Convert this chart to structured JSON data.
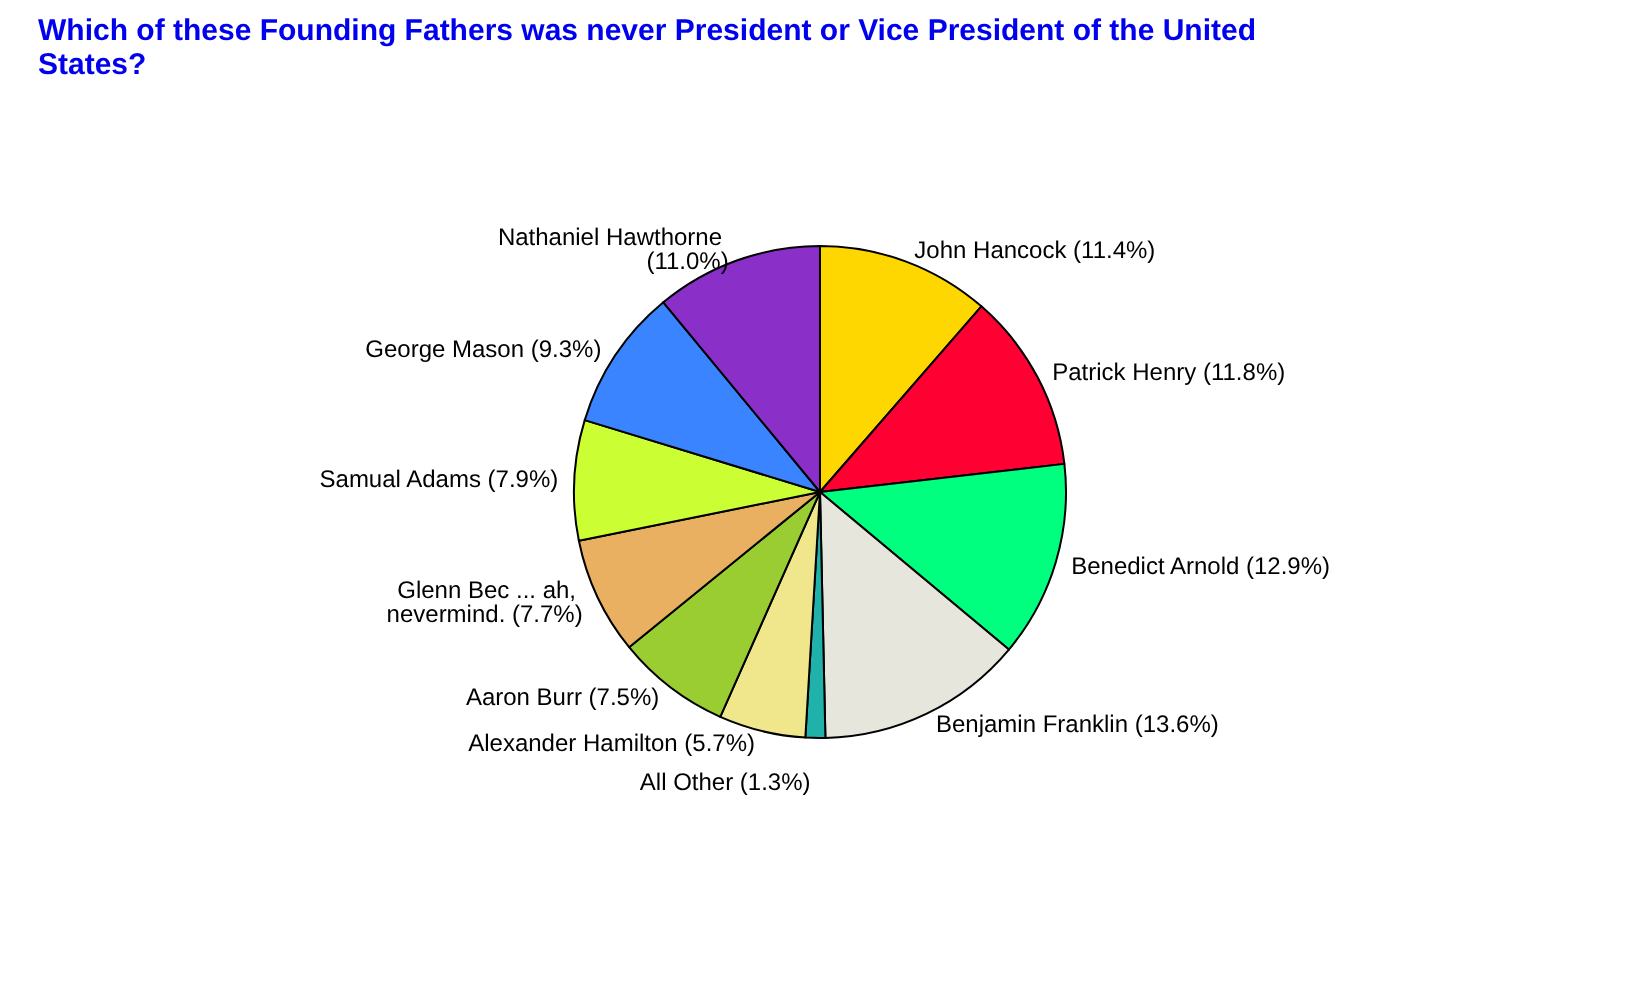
{
  "chart_data": {
    "type": "pie",
    "title": "Which of these Founding Fathers was never President or Vice President of the United States?",
    "categories": [
      "John Hancock",
      "Patrick Henry",
      "Benedict Arnold",
      "Benjamin Franklin",
      "All Other",
      "Alexander Hamilton",
      "Aaron Burr",
      "Glenn Bec ... ah, nevermind.",
      "Samual Adams",
      "George Mason",
      "Nathaniel Hawthorne"
    ],
    "values": [
      11.4,
      11.8,
      12.9,
      13.6,
      1.3,
      5.7,
      7.5,
      7.7,
      7.9,
      9.3,
      11.0
    ],
    "value_labels": [
      "(11.4%)",
      "(11.8%)",
      "(12.9%)",
      "(13.6%)",
      "(1.3%)",
      "(5.7%)",
      "(7.5%)",
      "(7.7%)",
      "(7.9%)",
      "(9.3%)",
      "(11.0%)"
    ],
    "colors": [
      "#ffd700",
      "#ff0033",
      "#00ff7f",
      "#e6e6dc",
      "#20b2aa",
      "#f0e68c",
      "#9acd32",
      "#e8b060",
      "#ccff33",
      "#3a85ff",
      "#8b2fc9"
    ],
    "legend": false
  }
}
